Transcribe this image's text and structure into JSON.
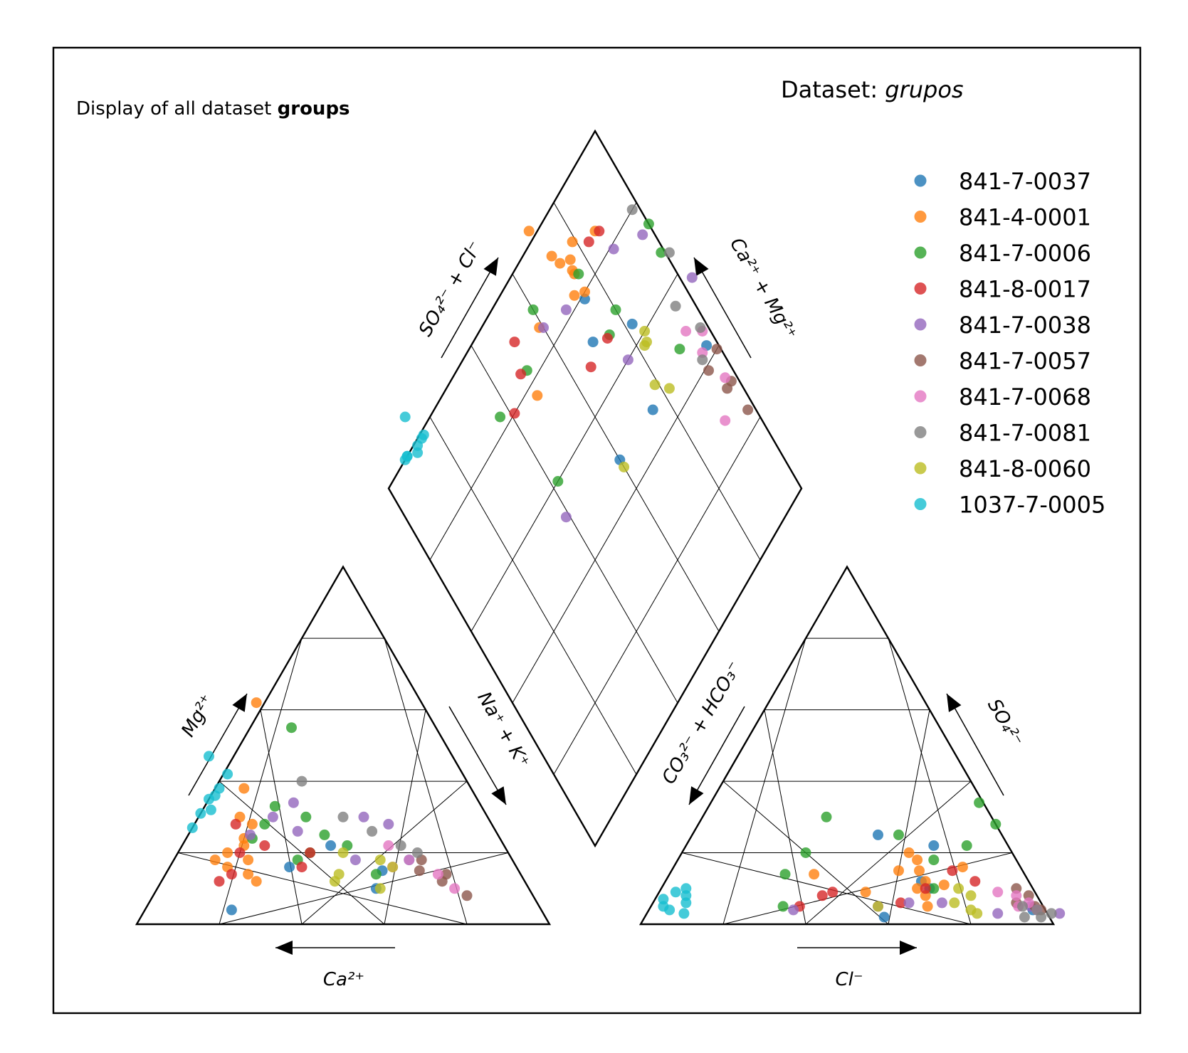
{
  "header": {
    "subtitle_prefix": "Display of all dataset ",
    "subtitle_bold": "groups",
    "title_prefix": "Dataset: ",
    "title_italic": "grupos"
  },
  "axis_labels": {
    "cation_bottom": "Ca²⁺",
    "cation_left": "Mg²⁺",
    "cation_right": "Na⁺ + K⁺",
    "anion_bottom": "Cl⁻",
    "anion_right": "SO₄²⁻",
    "anion_left": "CO₃²⁻ + HCO₃⁻",
    "diamond_upper_left": "SO₄²⁻ + Cl⁻",
    "diamond_upper_right": "Ca²⁺ + Mg²⁺"
  },
  "chart_data": {
    "type": "scatter",
    "kind": "piper-diagram",
    "units": "percent of meq/L",
    "grid": true,
    "legend_position": "top-right",
    "series": [
      {
        "name": "841-7-0037",
        "color": "#1f77b4",
        "samples": [
          {
            "ca": 55,
            "mg": 16,
            "so4": 25,
            "cl": 45
          },
          {
            "ca": 75,
            "mg": 4,
            "so4": 12,
            "cl": 62
          },
          {
            "ca": 37,
            "mg": 10,
            "so4": 10,
            "cl": 65
          },
          {
            "ca": 42,
            "mg": 22,
            "so4": 22,
            "cl": 60
          },
          {
            "ca": 25,
            "mg": 18,
            "so4": 4,
            "cl": 93
          },
          {
            "ca": 33,
            "mg": 15,
            "so4": 2,
            "cl": 58
          }
        ]
      },
      {
        "name": "841-4-0001",
        "color": "#ff7f0e",
        "samples": [
          {
            "ca": 40,
            "mg": 62,
            "so4": 15,
            "cl": 55
          },
          {
            "ca": 55,
            "mg": 38,
            "so4": 10,
            "cl": 62
          },
          {
            "ca": 62,
            "mg": 24,
            "so4": 15,
            "cl": 60
          },
          {
            "ca": 68,
            "mg": 20,
            "so4": 18,
            "cl": 58
          },
          {
            "ca": 60,
            "mg": 30,
            "so4": 8,
            "cl": 65
          },
          {
            "ca": 66,
            "mg": 14,
            "so4": 12,
            "cl": 63
          },
          {
            "ca": 70,
            "mg": 16,
            "so4": 9,
            "cl": 50
          },
          {
            "ca": 63,
            "mg": 22,
            "so4": 20,
            "cl": 55
          },
          {
            "ca": 58,
            "mg": 28,
            "so4": 16,
            "cl": 70
          },
          {
            "ca": 64,
            "mg": 18,
            "so4": 5,
            "cl": 67
          },
          {
            "ca": 72,
            "mg": 18,
            "so4": 11,
            "cl": 68
          },
          {
            "ca": 65,
            "mg": 12,
            "so4": 14,
            "cl": 35
          }
        ]
      },
      {
        "name": "841-7-0006",
        "color": "#2ca02c",
        "samples": [
          {
            "ca": 35,
            "mg": 55,
            "so4": 30,
            "cl": 30
          },
          {
            "ca": 50,
            "mg": 33,
            "so4": 20,
            "cl": 30
          },
          {
            "ca": 42,
            "mg": 25,
            "so4": 34,
            "cl": 65
          },
          {
            "ca": 55,
            "mg": 28,
            "so4": 5,
            "cl": 32
          },
          {
            "ca": 48,
            "mg": 20,
            "so4": 25,
            "cl": 50
          },
          {
            "ca": 35,
            "mg": 14,
            "so4": 22,
            "cl": 68
          },
          {
            "ca": 44,
            "mg": 30,
            "so4": 28,
            "cl": 72
          },
          {
            "ca": 52,
            "mg": 18,
            "so4": 18,
            "cl": 62
          },
          {
            "ca": 38,
            "mg": 22,
            "so4": 14,
            "cl": 28
          },
          {
            "ca": 60,
            "mg": 24,
            "so4": 10,
            "cl": 66
          }
        ]
      },
      {
        "name": "841-8-0017",
        "color": "#d62728",
        "samples": [
          {
            "ca": 70,
            "mg": 14,
            "so4": 8,
            "cl": 40
          },
          {
            "ca": 65,
            "mg": 20,
            "so4": 12,
            "cl": 75
          },
          {
            "ca": 58,
            "mg": 22,
            "so4": 5,
            "cl": 36
          },
          {
            "ca": 52,
            "mg": 16,
            "so4": 10,
            "cl": 64
          },
          {
            "ca": 62,
            "mg": 28,
            "so4": 9,
            "cl": 42
          },
          {
            "ca": 74,
            "mg": 12,
            "so4": 15,
            "cl": 68
          },
          {
            "ca": 48,
            "mg": 20,
            "so4": 6,
            "cl": 60
          }
        ]
      },
      {
        "name": "841-7-0038",
        "color": "#9467bd",
        "samples": [
          {
            "ca": 45,
            "mg": 34,
            "so4": 3,
            "cl": 85
          },
          {
            "ca": 30,
            "mg": 30,
            "so4": 6,
            "cl": 70
          },
          {
            "ca": 60,
            "mg": 25,
            "so4": 5,
            "cl": 55
          },
          {
            "ca": 38,
            "mg": 18,
            "so4": 3,
            "cl": 100
          },
          {
            "ca": 25,
            "mg": 28,
            "so4": 4,
            "cl": 35
          },
          {
            "ca": 48,
            "mg": 26,
            "so4": 5,
            "cl": 92
          },
          {
            "ca": 52,
            "mg": 30,
            "so4": 6,
            "cl": 62
          }
        ]
      },
      {
        "name": "841-7-0057",
        "color": "#8c564b",
        "samples": [
          {
            "ca": 20,
            "mg": 12,
            "so4": 8,
            "cl": 90
          },
          {
            "ca": 24,
            "mg": 15,
            "so4": 6,
            "cl": 88
          },
          {
            "ca": 18,
            "mg": 14,
            "so4": 10,
            "cl": 86
          },
          {
            "ca": 16,
            "mg": 8,
            "so4": 5,
            "cl": 93
          },
          {
            "ca": 22,
            "mg": 18,
            "so4": 4,
            "cl": 95
          }
        ]
      },
      {
        "name": "841-7-0068",
        "color": "#e377c2",
        "samples": [
          {
            "ca": 25,
            "mg": 18,
            "so4": 8,
            "cl": 87
          },
          {
            "ca": 20,
            "mg": 14,
            "so4": 6,
            "cl": 91
          },
          {
            "ca": 28,
            "mg": 22,
            "so4": 5,
            "cl": 89
          },
          {
            "ca": 18,
            "mg": 10,
            "so4": 9,
            "cl": 82
          },
          {
            "ca": 30,
            "mg": 16,
            "so4": 4,
            "cl": 94
          }
        ]
      },
      {
        "name": "841-7-0081",
        "color": "#7f7f7f",
        "samples": [
          {
            "ca": 40,
            "mg": 40,
            "so4": 2,
            "cl": 96
          },
          {
            "ca": 25,
            "mg": 22,
            "so4": 4,
            "cl": 94
          },
          {
            "ca": 35,
            "mg": 30,
            "so4": 3,
            "cl": 98
          },
          {
            "ca": 30,
            "mg": 26,
            "so4": 5,
            "cl": 90
          },
          {
            "ca": 22,
            "mg": 20,
            "so4": 2,
            "cl": 92
          }
        ]
      },
      {
        "name": "841-8-0060",
        "color": "#bcbd22",
        "samples": [
          {
            "ca": 32,
            "mg": 18,
            "so4": 6,
            "cl": 73
          },
          {
            "ca": 44,
            "mg": 14,
            "so4": 4,
            "cl": 78
          },
          {
            "ca": 40,
            "mg": 20,
            "so4": 8,
            "cl": 76
          },
          {
            "ca": 36,
            "mg": 10,
            "so4": 5,
            "cl": 55
          },
          {
            "ca": 30,
            "mg": 16,
            "so4": 10,
            "cl": 72
          },
          {
            "ca": 46,
            "mg": 12,
            "so4": 3,
            "cl": 80
          }
        ]
      },
      {
        "name": "1037-7-0005",
        "color": "#17becf",
        "samples": [
          {
            "ca": 73,
            "mg": 27,
            "so4": 4,
            "cl": 5
          },
          {
            "ca": 69,
            "mg": 31,
            "so4": 5,
            "cl": 3
          },
          {
            "ca": 65,
            "mg": 35,
            "so4": 7,
            "cl": 2
          },
          {
            "ca": 61,
            "mg": 38,
            "so4": 9,
            "cl": 4
          },
          {
            "ca": 57,
            "mg": 42,
            "so4": 10,
            "cl": 6
          },
          {
            "ca": 59,
            "mg": 47,
            "so4": 6,
            "cl": 8
          },
          {
            "ca": 66,
            "mg": 32,
            "so4": 3,
            "cl": 9
          },
          {
            "ca": 63,
            "mg": 36,
            "so4": 8,
            "cl": 7
          }
        ]
      }
    ]
  }
}
